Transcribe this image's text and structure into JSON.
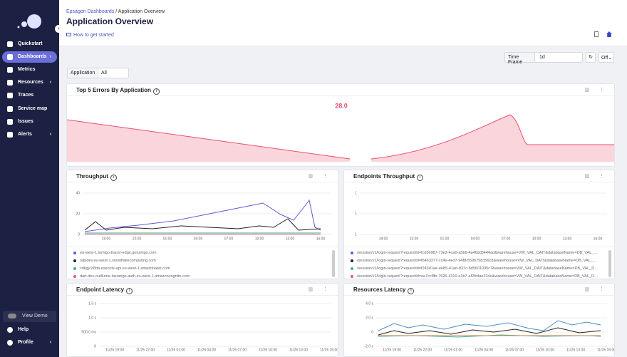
{
  "sidebar": {
    "items": [
      "Quickstart",
      "Dashboards",
      "Metrics",
      "Resources",
      "Traces",
      "Service map",
      "Issues",
      "Alerts"
    ],
    "view_demo": "View Demo",
    "help": "Help",
    "profile": "Profile"
  },
  "header": {
    "breadcrumb_root": "Epsagon Dashboards",
    "breadcrumb_current": "/ Application Overview",
    "title": "Application Overview",
    "help_link": "How to get started"
  },
  "toolbar": {
    "time_frame_label": "Time Frame",
    "time_frame_value": "1d",
    "refresh_value": "Off"
  },
  "filter": {
    "label": "Application",
    "value": "All"
  },
  "panels": [
    {
      "title": "Top 5 Errors By Application",
      "value": "28.0"
    },
    {
      "title": "Throughput",
      "yticks": [
        "40",
        "20",
        "0"
      ],
      "xticks": [
        "19:00",
        "22:00",
        "01:00",
        "04:00",
        "07:00",
        "10:00",
        "13:00",
        "16:00"
      ],
      "legend": [
        {
          "name": "eu-west-1.lumigo-tracer-edge.golumigo.com",
          "color": "#5b5bd6"
        },
        {
          "name": "ratpdev.eu-west-1.snowflakecomputing.com",
          "color": "#222222"
        },
        {
          "name": "cdkgy1t8da.execute-api.eu-west-1.amazonaws.com",
          "color": "#4caf8a"
        },
        {
          "name": "dart-dev-outllume-lasrange.auth.eu-west-1.amazoncognito.com",
          "color": "#e05a7a"
        }
      ]
    },
    {
      "title": "Endpoints Throughput",
      "yticks": [
        "1",
        "1",
        "1"
      ],
      "xticks": [
        "19:00",
        "22:00",
        "01:00",
        "04:00",
        "07:00",
        "10:00",
        "13:00",
        "16:00"
      ],
      "legend": [
        {
          "name": "/session/v1/login-request?requestId=fcd36987-73e2-4ca0-a5b6-4a46dd5444ad&warehouse=VW_VAL_DAIT&databaseName=DB_VAL_DAIT",
          "color": "#5b5bd6"
        },
        {
          "name": "/session/v1/login-request?requestId=f6463377-cc4e-4ed7-94f8-559b75835603&warehouse=VW_VAL_DAIT&databaseName=DB_VAL_DAIT",
          "color": "#222222"
        },
        {
          "name": "/session/v1/login-request?requestId=f243d1ae-ee85-41ad-837c-8d5601095c7&warehouse=VW_VAL_DAIT&databaseName=DB_VAL_DAIT",
          "color": "#4caf8a"
        },
        {
          "name": "/session/v1/login-request?requestId=ee7cc8fb-7626-4310-a1b7-af2fcdae234e&warehouse=VW_VAL_DAIT&databaseName=DB_VAL_DAIT",
          "color": "#e05a7a"
        }
      ]
    },
    {
      "title": "Endpoint Latency",
      "yticks": [
        "1.5 s",
        "1.0 s",
        "500.0 ms",
        "0"
      ],
      "xticks": [
        "11/25 19:00",
        "11/25 22:00",
        "11/26 01:00",
        "11/26 04:00",
        "11/26 07:00",
        "11/26 10:00",
        "11/26 13:00",
        "11/26 16:00"
      ]
    },
    {
      "title": "Resources Latency",
      "yticks": [
        "4.0 s",
        "2.0 s",
        "0",
        "-2.0 s"
      ],
      "xticks": [
        "11/25 19:00",
        "11/25 22:00",
        "11/26 01:00",
        "11/26 04:00",
        "11/26 07:00",
        "11/26 10:00",
        "11/26 13:00",
        "11/26 16:00"
      ]
    }
  ]
}
